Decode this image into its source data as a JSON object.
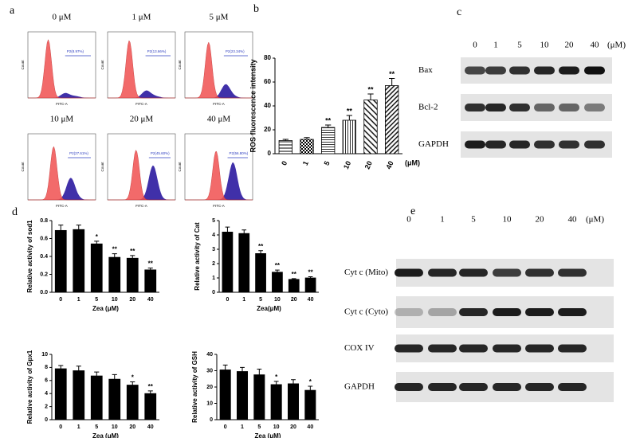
{
  "flow_cytometry": {
    "label": "a",
    "xlabel": "FITC-A",
    "ylabel": "Count",
    "plots": [
      {
        "title": "0 μM",
        "gate": "P2(8.97%)"
      },
      {
        "title": "1 μM",
        "gate": "P2(13.66%)"
      },
      {
        "title": "5 μM",
        "gate": "P2(23.34%)"
      },
      {
        "title": "10 μM",
        "gate": "P2(27.61%)"
      },
      {
        "title": "20 μM",
        "gate": "P2(45.60%)"
      },
      {
        "title": "40 μM",
        "gate": "P2(56.80%)"
      }
    ]
  },
  "blot_c": {
    "label": "c",
    "doses": [
      "0",
      "1",
      "5",
      "10",
      "20",
      "40"
    ],
    "unit": "(μM)",
    "rows": [
      "Bax",
      "Bcl-2",
      "GAPDH"
    ]
  },
  "blot_e": {
    "label": "e",
    "doses": [
      "0",
      "1",
      "5",
      "10",
      "20",
      "40"
    ],
    "unit": "(μM)",
    "rows": [
      "Cyt c (Mito)",
      "Cyt c (Cyto)",
      "COX IV",
      "GAPDH"
    ]
  },
  "chart_data": [
    {
      "type": "bar",
      "panel_label": "b",
      "ylabel": "ROS fluorescence intensity",
      "xunit": "(μM)",
      "categories": [
        "0",
        "1",
        "5",
        "10",
        "20",
        "40"
      ],
      "values": [
        11,
        12,
        22,
        28,
        45,
        57
      ],
      "errors": [
        1,
        1.5,
        2,
        4,
        5,
        6
      ],
      "significance": [
        null,
        null,
        "**",
        "**",
        "**",
        "**"
      ],
      "color": "#000000",
      "ylim": [
        0,
        80
      ],
      "yticks": [
        0,
        20,
        40,
        60,
        80
      ]
    },
    {
      "type": "bar",
      "panel_label": "d",
      "ylabel": "Relative activity of sod1",
      "xlabel": "Zea (μM)",
      "categories": [
        "0",
        "1",
        "5",
        "10",
        "20",
        "40"
      ],
      "values": [
        0.69,
        0.7,
        0.54,
        0.39,
        0.38,
        0.25
      ],
      "errors": [
        0.06,
        0.05,
        0.03,
        0.04,
        0.03,
        0.02
      ],
      "significance": [
        null,
        null,
        "*",
        "**",
        "**",
        "**"
      ],
      "color": "#000000",
      "ylim": [
        0,
        0.8
      ],
      "yticks": [
        {
          "value": 0,
          "label": "0.0"
        },
        {
          "value": 0.2,
          "label": "0.2"
        },
        {
          "value": 0.4,
          "label": "0.4"
        },
        {
          "value": 0.6,
          "label": "0.6"
        },
        {
          "value": 0.8,
          "label": "0.8"
        }
      ]
    },
    {
      "type": "bar",
      "ylabel": "Relative activity of Cat",
      "xlabel": "Zea(μM)",
      "categories": [
        "0",
        "1",
        "5",
        "10",
        "20",
        "40"
      ],
      "values": [
        4.2,
        4.1,
        2.7,
        1.4,
        0.9,
        1.0
      ],
      "errors": [
        0.35,
        0.25,
        0.2,
        0.15,
        0.05,
        0.08
      ],
      "significance": [
        null,
        null,
        "**",
        "**",
        "**",
        "**"
      ],
      "color": "#000000",
      "ylim": [
        0,
        5
      ],
      "yticks": [
        0,
        1,
        2,
        3,
        4,
        5
      ]
    },
    {
      "type": "bar",
      "ylabel": "Relative activity of Gpx1",
      "xlabel": "Zea (μM)",
      "categories": [
        "0",
        "1",
        "5",
        "10",
        "20",
        "40"
      ],
      "values": [
        7.8,
        7.5,
        6.7,
        6.2,
        5.3,
        4.0
      ],
      "errors": [
        0.5,
        0.7,
        0.6,
        0.7,
        0.5,
        0.4
      ],
      "significance": [
        null,
        null,
        null,
        null,
        "*",
        "**"
      ],
      "color": "#000000",
      "ylim": [
        0,
        10
      ],
      "yticks": [
        0,
        2,
        4,
        6,
        8,
        10
      ]
    },
    {
      "type": "bar",
      "ylabel": "Relative activity of GSH",
      "xlabel": "Zea (μM)",
      "categories": [
        "0",
        "1",
        "5",
        "10",
        "20",
        "40"
      ],
      "values": [
        30.5,
        29.5,
        27.5,
        21.5,
        22,
        18
      ],
      "errors": [
        3,
        2.5,
        3.5,
        2,
        2.5,
        2.5
      ],
      "significance": [
        null,
        null,
        null,
        "*",
        null,
        "*"
      ],
      "color": "#000000",
      "ylim": [
        0,
        40
      ],
      "yticks": [
        0,
        10,
        20,
        30,
        40
      ]
    }
  ]
}
